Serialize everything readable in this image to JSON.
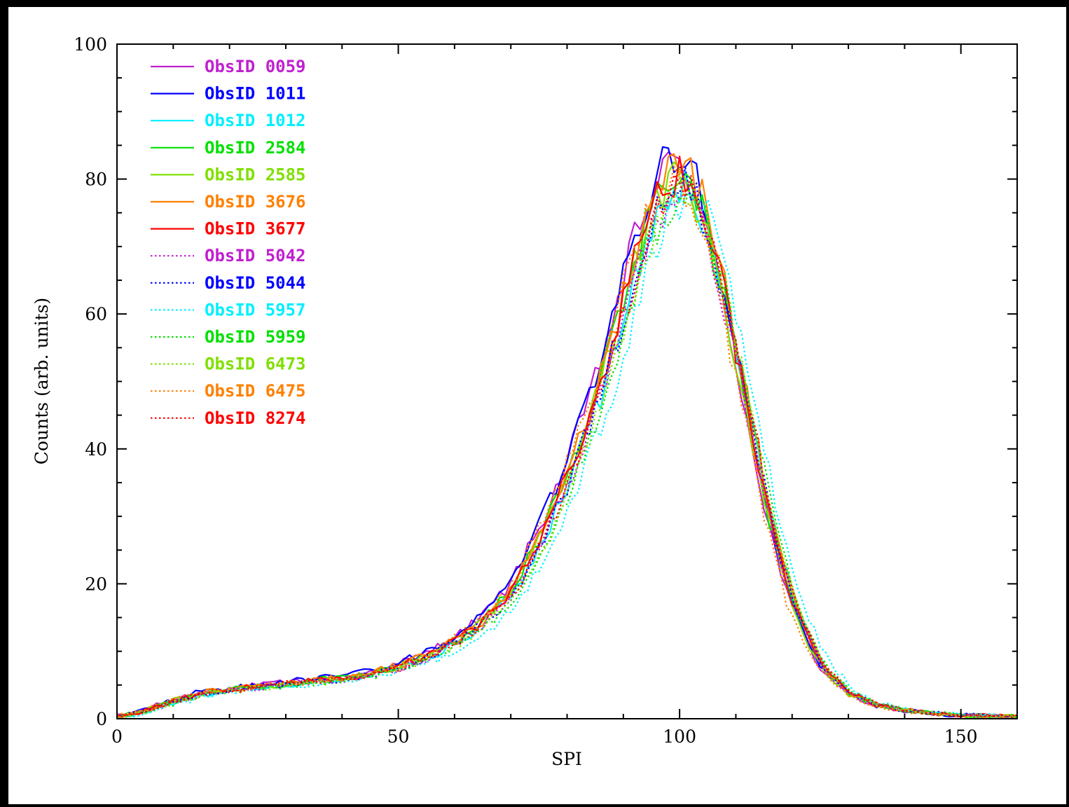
{
  "chart_data": {
    "type": "line",
    "title": "",
    "xlabel": "SPI",
    "ylabel": "Counts (arb. units)",
    "xlim": [
      0,
      160
    ],
    "ylim": [
      0,
      100
    ],
    "xticks": [
      0,
      50,
      100,
      150
    ],
    "yticks": [
      0,
      20,
      40,
      60,
      80,
      100
    ],
    "grid": false,
    "legend_position": "top-left",
    "profile": {
      "x": [
        0,
        5,
        10,
        15,
        20,
        25,
        30,
        35,
        40,
        45,
        50,
        55,
        60,
        65,
        70,
        75,
        80,
        85,
        88,
        90,
        92,
        94,
        96,
        98,
        100,
        102,
        104,
        106,
        108,
        110,
        113,
        116,
        120,
        125,
        130,
        135,
        140,
        145,
        150,
        155,
        160
      ],
      "y": [
        0.3,
        1.2,
        2.6,
        3.8,
        4.3,
        4.8,
        5.2,
        5.6,
        6.0,
        6.7,
        7.8,
        9.3,
        11.5,
        14.5,
        19.0,
        26.5,
        36.0,
        47.5,
        56.0,
        62.0,
        68.0,
        73.0,
        77.0,
        79.5,
        81.0,
        79.5,
        75.0,
        69.0,
        62.0,
        54.0,
        42.0,
        29.5,
        17.0,
        8.0,
        3.8,
        2.0,
        1.2,
        0.8,
        0.5,
        0.4,
        0.3
      ]
    },
    "series": [
      {
        "name": "ObsID 0059",
        "color": "#c020d0",
        "style": "solid",
        "shift": -0.6,
        "scale": 1.02
      },
      {
        "name": "ObsID 1011",
        "color": "#0000ff",
        "style": "solid",
        "shift": -0.4,
        "scale": 1.04
      },
      {
        "name": "ObsID 1012",
        "color": "#00f0ff",
        "style": "solid",
        "shift": 0.5,
        "scale": 0.98
      },
      {
        "name": "ObsID 2584",
        "color": "#00e000",
        "style": "solid",
        "shift": 0.0,
        "scale": 1.0
      },
      {
        "name": "ObsID 2585",
        "color": "#80e000",
        "style": "solid",
        "shift": -0.2,
        "scale": 0.99
      },
      {
        "name": "ObsID 3676",
        "color": "#ff8000",
        "style": "solid",
        "shift": 0.3,
        "scale": 1.02
      },
      {
        "name": "ObsID 3677",
        "color": "#ff0000",
        "style": "solid",
        "shift": 0.1,
        "scale": 1.0
      },
      {
        "name": "ObsID 5042",
        "color": "#c020d0",
        "style": "dotted",
        "shift": 0.2,
        "scale": 0.97
      },
      {
        "name": "ObsID 5044",
        "color": "#0000ff",
        "style": "dotted",
        "shift": 0.4,
        "scale": 0.98
      },
      {
        "name": "ObsID 5957",
        "color": "#00f0ff",
        "style": "dotted",
        "shift": 2.0,
        "scale": 0.96
      },
      {
        "name": "ObsID 5959",
        "color": "#00e000",
        "style": "dotted",
        "shift": 1.0,
        "scale": 0.97
      },
      {
        "name": "ObsID 6473",
        "color": "#80e000",
        "style": "dotted",
        "shift": 0.8,
        "scale": 0.97
      },
      {
        "name": "ObsID 6475",
        "color": "#ff8000",
        "style": "dotted",
        "shift": -0.8,
        "scale": 0.99
      },
      {
        "name": "ObsID 8274",
        "color": "#ff0000",
        "style": "dotted",
        "shift": 0.6,
        "scale": 0.99
      }
    ]
  }
}
